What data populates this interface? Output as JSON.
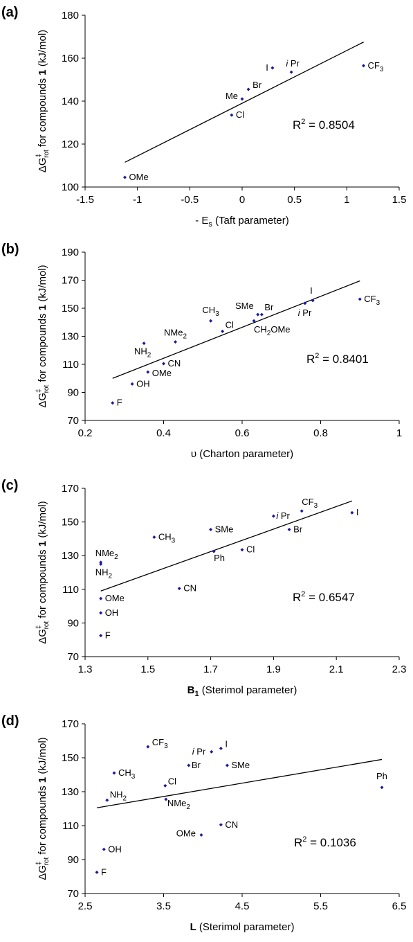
{
  "colors": {
    "point": "#1a1aa0",
    "line": "#000000",
    "axis": "#000000"
  },
  "chart_data": [
    {
      "type": "scatter",
      "panel": "(a)",
      "xlabel": "- E_s (Taft parameter)",
      "ylabel": "ΔG‡_rot for compounds 1 (kJ/mol)",
      "xlim": [
        -1.5,
        1.5
      ],
      "ylim": [
        100,
        180
      ],
      "xticks": [
        "-1.5",
        "-1",
        "-0.5",
        "0",
        "0.5",
        "1",
        "1.5"
      ],
      "yticks": [
        "100",
        "120",
        "140",
        "160",
        "180"
      ],
      "r2": "R² = 0.8504",
      "fit": {
        "x": [
          -1.12,
          1.16
        ],
        "y": [
          111.5,
          167.5
        ]
      },
      "points": [
        {
          "label": "OMe",
          "x": -1.12,
          "y": 104.5
        },
        {
          "label": "Cl",
          "x": -0.1,
          "y": 133.5
        },
        {
          "label": "Me",
          "x": 0.0,
          "y": 141
        },
        {
          "label": "Br",
          "x": 0.06,
          "y": 145.5
        },
        {
          "label": "I",
          "x": 0.29,
          "y": 155.5
        },
        {
          "label": "iPr",
          "x": 0.47,
          "y": 153.5
        },
        {
          "label": "CF3",
          "x": 1.16,
          "y": 156.5
        }
      ]
    },
    {
      "type": "scatter",
      "panel": "(b)",
      "xlabel": "υ (Charton parameter)",
      "ylabel": "ΔG‡_rot for compounds 1 (kJ/mol)",
      "xlim": [
        0.2,
        1.0
      ],
      "ylim": [
        70,
        190
      ],
      "xticks": [
        "0.2",
        "0.4",
        "0.6",
        "0.8",
        "1"
      ],
      "yticks": [
        "70",
        "90",
        "110",
        "130",
        "150",
        "170",
        "190"
      ],
      "r2": "R² = 0.8401",
      "fit": {
        "x": [
          0.27,
          0.9
        ],
        "y": [
          100,
          169.5
        ]
      },
      "points": [
        {
          "label": "F",
          "x": 0.27,
          "y": 82.5
        },
        {
          "label": "OH",
          "x": 0.32,
          "y": 96
        },
        {
          "label": "NH2",
          "x": 0.35,
          "y": 125
        },
        {
          "label": "OMe",
          "x": 0.36,
          "y": 104.5
        },
        {
          "label": "CN",
          "x": 0.4,
          "y": 110.5
        },
        {
          "label": "NMe2",
          "x": 0.43,
          "y": 126
        },
        {
          "label": "CH3",
          "x": 0.52,
          "y": 141
        },
        {
          "label": "Cl",
          "x": 0.55,
          "y": 133.5
        },
        {
          "label": "CH2OMe",
          "x": 0.63,
          "y": 141
        },
        {
          "label": "SMe",
          "x": 0.64,
          "y": 145.5
        },
        {
          "label": "Br",
          "x": 0.65,
          "y": 145.5
        },
        {
          "label": "iPr",
          "x": 0.76,
          "y": 153.5
        },
        {
          "label": "I",
          "x": 0.78,
          "y": 155.5
        },
        {
          "label": "CF3",
          "x": 0.9,
          "y": 156.5
        }
      ]
    },
    {
      "type": "scatter",
      "panel": "(c)",
      "xlabel": "B1 (Sterimol parameter)",
      "ylabel": "ΔG‡_rot for compounds 1 (kJ/mol)",
      "xlim": [
        1.3,
        2.3
      ],
      "ylim": [
        70,
        170
      ],
      "xticks": [
        "1.3",
        "1.5",
        "1.7",
        "1.9",
        "2.1",
        "2.3"
      ],
      "yticks": [
        "70",
        "90",
        "110",
        "130",
        "150",
        "170"
      ],
      "r2": "R² = 0.6547",
      "fit": {
        "x": [
          1.35,
          2.15
        ],
        "y": [
          109,
          162.5
        ]
      },
      "points": [
        {
          "label": "F",
          "x": 1.35,
          "y": 82.5
        },
        {
          "label": "OH",
          "x": 1.35,
          "y": 96
        },
        {
          "label": "OMe",
          "x": 1.35,
          "y": 104.5
        },
        {
          "label": "NH2",
          "x": 1.35,
          "y": 125
        },
        {
          "label": "NMe2",
          "x": 1.35,
          "y": 126
        },
        {
          "label": "CH3",
          "x": 1.52,
          "y": 141
        },
        {
          "label": "CN",
          "x": 1.6,
          "y": 110.5
        },
        {
          "label": "SMe",
          "x": 1.7,
          "y": 145.5
        },
        {
          "label": "Ph",
          "x": 1.71,
          "y": 132.5
        },
        {
          "label": "Cl",
          "x": 1.8,
          "y": 133.5
        },
        {
          "label": "iPr",
          "x": 1.9,
          "y": 153.5
        },
        {
          "label": "Br",
          "x": 1.95,
          "y": 145.5
        },
        {
          "label": "CF3",
          "x": 1.99,
          "y": 156.5
        },
        {
          "label": "I",
          "x": 2.15,
          "y": 155.5
        }
      ]
    },
    {
      "type": "scatter",
      "panel": "(d)",
      "xlabel": "L (Sterimol parameter)",
      "ylabel": "ΔG‡_rot for compounds 1 (kJ/mol)",
      "xlim": [
        2.5,
        6.5
      ],
      "ylim": [
        70,
        170
      ],
      "xticks": [
        "2.5",
        "3.5",
        "4.5",
        "5.5",
        "6.5"
      ],
      "yticks": [
        "70",
        "90",
        "110",
        "130",
        "150",
        "170"
      ],
      "r2": "R² = 0.1036",
      "fit": {
        "x": [
          2.65,
          6.28
        ],
        "y": [
          120.5,
          149
        ]
      },
      "points": [
        {
          "label": "F",
          "x": 2.65,
          "y": 82.5
        },
        {
          "label": "OH",
          "x": 2.74,
          "y": 96
        },
        {
          "label": "NH2",
          "x": 2.78,
          "y": 125
        },
        {
          "label": "CH3",
          "x": 2.87,
          "y": 141
        },
        {
          "label": "CF3",
          "x": 3.3,
          "y": 156.5
        },
        {
          "label": "Cl",
          "x": 3.52,
          "y": 133.5
        },
        {
          "label": "NMe2",
          "x": 3.53,
          "y": 125.5
        },
        {
          "label": "Br",
          "x": 3.82,
          "y": 145.5
        },
        {
          "label": "OMe",
          "x": 3.98,
          "y": 104.5
        },
        {
          "label": "iPr",
          "x": 4.11,
          "y": 153.5
        },
        {
          "label": "I",
          "x": 4.23,
          "y": 155.5
        },
        {
          "label": "CN",
          "x": 4.23,
          "y": 110.5
        },
        {
          "label": "SMe",
          "x": 4.31,
          "y": 145.5
        },
        {
          "label": "Ph",
          "x": 6.28,
          "y": 132.5
        }
      ]
    }
  ]
}
